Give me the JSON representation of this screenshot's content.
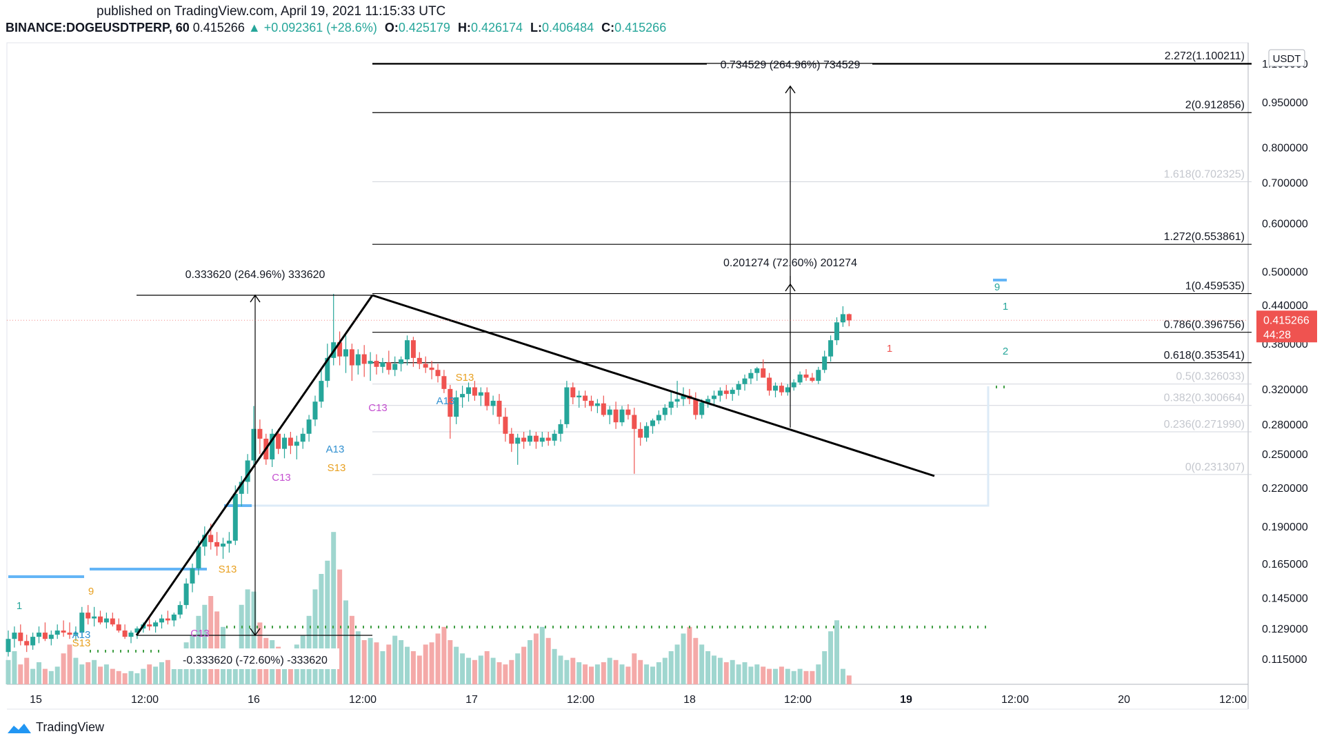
{
  "header": {
    "published": "published on TradingView.com, April 19, 2021 11:15:33 UTC",
    "symbol": "BINANCE:DOGEUSDTPERP, 60",
    "last": "0.415266",
    "change": "+0.092361 (+28.6%)",
    "o_label": "O:",
    "o": "0.425179",
    "h_label": "H:",
    "h": "0.426174",
    "l_label": "L:",
    "l": "0.406484",
    "c_label": "C:",
    "c": "0.415266"
  },
  "brand": "TradingView",
  "colors": {
    "up": "#26a69a",
    "down": "#ef5350",
    "vol_up": "#9fd6cf",
    "vol_down": "#f4a9a8",
    "level_blue": "#64b5f6",
    "dots_green": "#43a047",
    "td_orange": "#e8a020",
    "td_purple": "#c44fd0",
    "td_blue": "#2f8fd0",
    "price_tag": "#ef5350"
  },
  "chart_data": {
    "type": "candlestick",
    "y_scale": "log",
    "y_unit": "USDT",
    "y_ticks": [
      "0.950000",
      "0.800000",
      "0.700000",
      "0.600000",
      "0.500000",
      "0.440000",
      "0.380000",
      "0.320000",
      "0.280000",
      "0.250000",
      "0.220000",
      "0.190000",
      "0.165000",
      "0.145000",
      "0.129000",
      "0.115000"
    ],
    "y_top_partial": "1.100000",
    "x_ticks": [
      "15",
      "12:00",
      "16",
      "12:00",
      "17",
      "12:00",
      "18",
      "12:00",
      "19",
      "12:00",
      "20",
      "12:00"
    ],
    "bold_x_ticks": [
      8
    ],
    "last_price": "0.415266",
    "countdown": "44:28",
    "fib_levels": [
      {
        "label": "2.272(1.100211)",
        "value": 1.100211,
        "faint": false
      },
      {
        "label": "2(0.912856)",
        "value": 0.912856,
        "faint": false
      },
      {
        "label": "1.618(0.702325)",
        "value": 0.702325,
        "faint": true
      },
      {
        "label": "1.272(0.553861)",
        "value": 0.553861,
        "faint": false
      },
      {
        "label": "1(0.459535)",
        "value": 0.459535,
        "faint": false
      },
      {
        "label": "0.786(0.396756)",
        "value": 0.396756,
        "faint": false
      },
      {
        "label": "0.618(0.353541)",
        "value": 0.353541,
        "faint": false
      },
      {
        "label": "0.5(0.326033)",
        "value": 0.326033,
        "faint": true
      },
      {
        "label": "0.382(0.300664)",
        "value": 0.300664,
        "faint": true
      },
      {
        "label": "0.236(0.271990)",
        "value": 0.27199,
        "faint": true
      },
      {
        "label": "0(0.231307)",
        "value": 0.231307,
        "faint": true
      }
    ],
    "measures": [
      {
        "label": "0.333620 (264.96%) 333620"
      },
      {
        "label": "-0.333620 (-72.60%) -333620"
      },
      {
        "label": "0.201274 (72.60%) 201274"
      },
      {
        "label": "0.734529 (264.96%) 734529"
      }
    ],
    "td_labels": [
      {
        "text": "1",
        "color": "up"
      },
      {
        "text": "9",
        "color": "orange"
      },
      {
        "text": "A13",
        "color": "blue"
      },
      {
        "text": "S13",
        "color": "orange"
      },
      {
        "text": "C13",
        "color": "purple"
      },
      {
        "text": "S13",
        "color": "orange"
      },
      {
        "text": "C13",
        "color": "purple"
      },
      {
        "text": "A13",
        "color": "blue"
      },
      {
        "text": "S13",
        "color": "orange"
      },
      {
        "text": "C13",
        "color": "purple"
      },
      {
        "text": "S13",
        "color": "orange"
      },
      {
        "text": "A13",
        "color": "blue"
      },
      {
        "text": "1",
        "color": "down"
      },
      {
        "text": "9",
        "color": "up"
      },
      {
        "text": "1",
        "color": "up"
      },
      {
        "text": "2",
        "color": "up"
      }
    ],
    "candles": [
      [
        0.118,
        0.128,
        0.116,
        0.124
      ],
      [
        0.124,
        0.13,
        0.12,
        0.127
      ],
      [
        0.127,
        0.131,
        0.121,
        0.123
      ],
      [
        0.123,
        0.126,
        0.118,
        0.121
      ],
      [
        0.121,
        0.127,
        0.119,
        0.125
      ],
      [
        0.125,
        0.13,
        0.122,
        0.127
      ],
      [
        0.127,
        0.132,
        0.123,
        0.124
      ],
      [
        0.124,
        0.128,
        0.121,
        0.126
      ],
      [
        0.126,
        0.131,
        0.124,
        0.128
      ],
      [
        0.128,
        0.133,
        0.125,
        0.127
      ],
      [
        0.127,
        0.132,
        0.124,
        0.126
      ],
      [
        0.126,
        0.13,
        0.123,
        0.127
      ],
      [
        0.127,
        0.14,
        0.125,
        0.137
      ],
      [
        0.137,
        0.141,
        0.131,
        0.134
      ],
      [
        0.134,
        0.14,
        0.13,
        0.135
      ],
      [
        0.135,
        0.138,
        0.131,
        0.132
      ],
      [
        0.132,
        0.137,
        0.129,
        0.134
      ],
      [
        0.134,
        0.137,
        0.13,
        0.131
      ],
      [
        0.131,
        0.134,
        0.127,
        0.128
      ],
      [
        0.128,
        0.131,
        0.124,
        0.125
      ],
      [
        0.125,
        0.128,
        0.122,
        0.127
      ],
      [
        0.127,
        0.13,
        0.124,
        0.129
      ],
      [
        0.129,
        0.132,
        0.127,
        0.131
      ],
      [
        0.131,
        0.134,
        0.128,
        0.13
      ],
      [
        0.13,
        0.133,
        0.127,
        0.132
      ],
      [
        0.132,
        0.136,
        0.129,
        0.134
      ],
      [
        0.134,
        0.138,
        0.131,
        0.133
      ],
      [
        0.133,
        0.137,
        0.13,
        0.136
      ],
      [
        0.136,
        0.143,
        0.134,
        0.141
      ],
      [
        0.141,
        0.156,
        0.139,
        0.153
      ],
      [
        0.153,
        0.165,
        0.148,
        0.162
      ],
      [
        0.162,
        0.18,
        0.158,
        0.176
      ],
      [
        0.176,
        0.19,
        0.17,
        0.184
      ],
      [
        0.184,
        0.192,
        0.174,
        0.179
      ],
      [
        0.179,
        0.186,
        0.17,
        0.176
      ],
      [
        0.176,
        0.182,
        0.168,
        0.178
      ],
      [
        0.178,
        0.186,
        0.172,
        0.18
      ],
      [
        0.18,
        0.222,
        0.177,
        0.215
      ],
      [
        0.215,
        0.23,
        0.205,
        0.225
      ],
      [
        0.225,
        0.25,
        0.215,
        0.244
      ],
      [
        0.244,
        0.3,
        0.24,
        0.275
      ],
      [
        0.275,
        0.285,
        0.25,
        0.265
      ],
      [
        0.265,
        0.27,
        0.24,
        0.245
      ],
      [
        0.245,
        0.275,
        0.238,
        0.27
      ],
      [
        0.27,
        0.275,
        0.25,
        0.255
      ],
      [
        0.255,
        0.27,
        0.246,
        0.266
      ],
      [
        0.266,
        0.272,
        0.25,
        0.258
      ],
      [
        0.258,
        0.268,
        0.245,
        0.262
      ],
      [
        0.262,
        0.276,
        0.255,
        0.27
      ],
      [
        0.27,
        0.29,
        0.262,
        0.285
      ],
      [
        0.285,
        0.312,
        0.278,
        0.305
      ],
      [
        0.305,
        0.345,
        0.298,
        0.33
      ],
      [
        0.33,
        0.38,
        0.322,
        0.36
      ],
      [
        0.36,
        0.459,
        0.35,
        0.382
      ],
      [
        0.382,
        0.398,
        0.35,
        0.362
      ],
      [
        0.362,
        0.392,
        0.34,
        0.372
      ],
      [
        0.372,
        0.38,
        0.33,
        0.35
      ],
      [
        0.35,
        0.372,
        0.338,
        0.365
      ],
      [
        0.365,
        0.378,
        0.335,
        0.352
      ],
      [
        0.352,
        0.368,
        0.33,
        0.356
      ],
      [
        0.356,
        0.365,
        0.338,
        0.348
      ],
      [
        0.348,
        0.36,
        0.34,
        0.354
      ],
      [
        0.354,
        0.37,
        0.338,
        0.344
      ],
      [
        0.344,
        0.362,
        0.336,
        0.352
      ],
      [
        0.352,
        0.362,
        0.342,
        0.358
      ],
      [
        0.358,
        0.392,
        0.35,
        0.385
      ],
      [
        0.385,
        0.39,
        0.348,
        0.36
      ],
      [
        0.36,
        0.368,
        0.345,
        0.352
      ],
      [
        0.352,
        0.362,
        0.34,
        0.347
      ],
      [
        0.347,
        0.356,
        0.332,
        0.344
      ],
      [
        0.344,
        0.352,
        0.328,
        0.336
      ],
      [
        0.336,
        0.344,
        0.315,
        0.32
      ],
      [
        0.32,
        0.325,
        0.265,
        0.288
      ],
      [
        0.288,
        0.318,
        0.28,
        0.31
      ],
      [
        0.31,
        0.324,
        0.298,
        0.314
      ],
      [
        0.314,
        0.328,
        0.305,
        0.322
      ],
      [
        0.322,
        0.33,
        0.306,
        0.312
      ],
      [
        0.312,
        0.322,
        0.3,
        0.316
      ],
      [
        0.316,
        0.322,
        0.295,
        0.3
      ],
      [
        0.3,
        0.312,
        0.29,
        0.306
      ],
      [
        0.306,
        0.314,
        0.28,
        0.288
      ],
      [
        0.288,
        0.298,
        0.262,
        0.27
      ],
      [
        0.27,
        0.276,
        0.252,
        0.26
      ],
      [
        0.26,
        0.27,
        0.24,
        0.266
      ],
      [
        0.266,
        0.272,
        0.255,
        0.262
      ],
      [
        0.262,
        0.274,
        0.258,
        0.268
      ],
      [
        0.268,
        0.272,
        0.255,
        0.262
      ],
      [
        0.262,
        0.272,
        0.257,
        0.266
      ],
      [
        0.266,
        0.272,
        0.258,
        0.263
      ],
      [
        0.263,
        0.274,
        0.258,
        0.27
      ],
      [
        0.27,
        0.285,
        0.262,
        0.28
      ],
      [
        0.28,
        0.33,
        0.276,
        0.322
      ],
      [
        0.322,
        0.328,
        0.302,
        0.31
      ],
      [
        0.31,
        0.318,
        0.298,
        0.312
      ],
      [
        0.312,
        0.318,
        0.298,
        0.306
      ],
      [
        0.306,
        0.312,
        0.294,
        0.3
      ],
      [
        0.3,
        0.308,
        0.292,
        0.303
      ],
      [
        0.303,
        0.312,
        0.288,
        0.29
      ],
      [
        0.29,
        0.3,
        0.28,
        0.296
      ],
      [
        0.296,
        0.305,
        0.275,
        0.282
      ],
      [
        0.282,
        0.3,
        0.278,
        0.296
      ],
      [
        0.296,
        0.302,
        0.285,
        0.29
      ],
      [
        0.29,
        0.298,
        0.232,
        0.275
      ],
      [
        0.275,
        0.282,
        0.258,
        0.266
      ],
      [
        0.266,
        0.282,
        0.262,
        0.278
      ],
      [
        0.278,
        0.286,
        0.27,
        0.284
      ],
      [
        0.284,
        0.295,
        0.28,
        0.29
      ],
      [
        0.29,
        0.302,
        0.284,
        0.298
      ],
      [
        0.298,
        0.318,
        0.29,
        0.305
      ],
      [
        0.305,
        0.33,
        0.298,
        0.308
      ],
      [
        0.308,
        0.322,
        0.3,
        0.312
      ],
      [
        0.312,
        0.32,
        0.302,
        0.308
      ],
      [
        0.308,
        0.316,
        0.285,
        0.29
      ],
      [
        0.29,
        0.308,
        0.286,
        0.304
      ],
      [
        0.304,
        0.312,
        0.298,
        0.308
      ],
      [
        0.308,
        0.318,
        0.302,
        0.312
      ],
      [
        0.312,
        0.322,
        0.305,
        0.318
      ],
      [
        0.318,
        0.325,
        0.308,
        0.314
      ],
      [
        0.314,
        0.322,
        0.306,
        0.319
      ],
      [
        0.319,
        0.33,
        0.312,
        0.326
      ],
      [
        0.326,
        0.338,
        0.318,
        0.333
      ],
      [
        0.333,
        0.345,
        0.326,
        0.34
      ],
      [
        0.34,
        0.348,
        0.33,
        0.346
      ],
      [
        0.346,
        0.358,
        0.336,
        0.334
      ],
      [
        0.334,
        0.34,
        0.312,
        0.318
      ],
      [
        0.318,
        0.328,
        0.31,
        0.324
      ],
      [
        0.324,
        0.328,
        0.312,
        0.316
      ],
      [
        0.316,
        0.326,
        0.312,
        0.322
      ],
      [
        0.322,
        0.332,
        0.318,
        0.328
      ],
      [
        0.328,
        0.342,
        0.325,
        0.338
      ],
      [
        0.338,
        0.345,
        0.33,
        0.334
      ],
      [
        0.334,
        0.34,
        0.328,
        0.33
      ],
      [
        0.33,
        0.348,
        0.326,
        0.344
      ],
      [
        0.344,
        0.37,
        0.34,
        0.362
      ],
      [
        0.362,
        0.392,
        0.355,
        0.385
      ],
      [
        0.385,
        0.42,
        0.378,
        0.412
      ],
      [
        0.412,
        0.438,
        0.405,
        0.425
      ],
      [
        0.425,
        0.426,
        0.406,
        0.415
      ]
    ],
    "volume": [
      22,
      30,
      18,
      24,
      14,
      20,
      14,
      12,
      16,
      28,
      36,
      24,
      18,
      20,
      22,
      16,
      18,
      14,
      12,
      10,
      12,
      10,
      14,
      18,
      16,
      20,
      22,
      28,
      32,
      38,
      44,
      62,
      72,
      80,
      66,
      52,
      30,
      20,
      72,
      86,
      84,
      56,
      42,
      40,
      34,
      30,
      28,
      36,
      44,
      62,
      86,
      100,
      112,
      138,
      104,
      76,
      62,
      48,
      40,
      42,
      38,
      30,
      36,
      44,
      40,
      34,
      30,
      26,
      36,
      38,
      46,
      52,
      40,
      34,
      28,
      24,
      22,
      26,
      30,
      24,
      20,
      18,
      22,
      28,
      34,
      40,
      46,
      52,
      42,
      32,
      26,
      22,
      24,
      20,
      18,
      16,
      18,
      20,
      24,
      22,
      18,
      16,
      28,
      22,
      18,
      16,
      20,
      24,
      30,
      36,
      46,
      52,
      42,
      36,
      30,
      26,
      24,
      20,
      22,
      18,
      20,
      16,
      18,
      16,
      14,
      14,
      16,
      14,
      12,
      14,
      12,
      12,
      18,
      30,
      48,
      58,
      14,
      8
    ]
  }
}
